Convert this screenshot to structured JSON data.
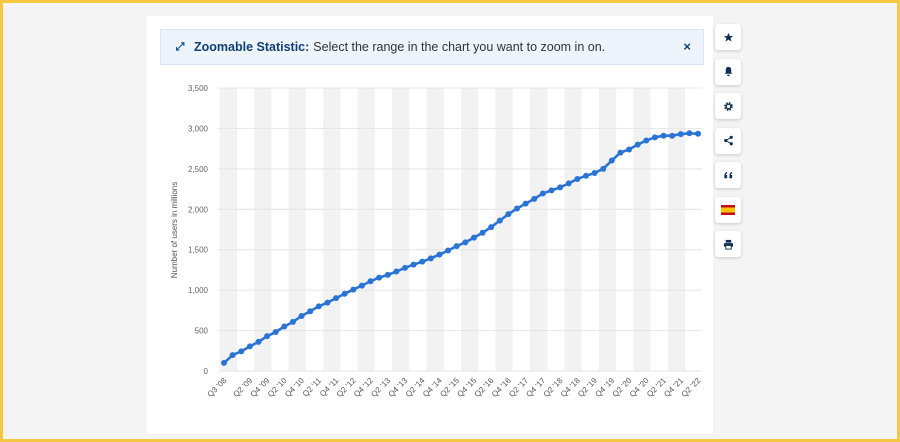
{
  "banner": {
    "label": "Zoomable Statistic:",
    "text": "Select the range in the chart you want to zoom in on.",
    "close": "×"
  },
  "toolbar": {
    "icons": [
      "star-icon",
      "bell-icon",
      "gear-icon",
      "share-icon",
      "quote-icon",
      "spain-flag-icon",
      "print-icon"
    ]
  },
  "colors": {
    "line": "#2a74d6",
    "band": "#f2f2f2",
    "grid": "#e4e4e4",
    "border": "#f5c743"
  },
  "chart_data": {
    "type": "line",
    "ylabel": "Number of users in millions",
    "ylim": [
      0,
      3500
    ],
    "yticks": [
      0,
      500,
      1000,
      1500,
      2000,
      2500,
      3000,
      3500
    ],
    "ytick_labels": [
      "0",
      "500",
      "1,000",
      "1,500",
      "2,000",
      "2,500",
      "3,000",
      "3,500"
    ],
    "grid": true,
    "x_tick_labels": [
      "Q3 '08",
      "Q2 '09",
      "Q4 '09",
      "Q2 '10",
      "Q4 '10",
      "Q2 '11",
      "Q4 '11",
      "Q2 '12",
      "Q4 '12",
      "Q2 '13",
      "Q4 '13",
      "Q2 '14",
      "Q4 '14",
      "Q2 '15",
      "Q4 '15",
      "Q2 '16",
      "Q4 '16",
      "Q2 '17",
      "Q4 '17",
      "Q2 '18",
      "Q4 '18",
      "Q2 '19",
      "Q4 '19",
      "Q2 '20",
      "Q4 '20",
      "Q2 '21",
      "Q4 '21",
      "Q2 '22"
    ],
    "x": [
      "Q3 '08",
      "Q4 '08",
      "Q1 '09",
      "Q2 '09",
      "Q3 '09",
      "Q4 '09",
      "Q1 '10",
      "Q2 '10",
      "Q3 '10",
      "Q4 '10",
      "Q1 '11",
      "Q2 '11",
      "Q3 '11",
      "Q4 '11",
      "Q1 '12",
      "Q2 '12",
      "Q3 '12",
      "Q4 '12",
      "Q1 '13",
      "Q2 '13",
      "Q3 '13",
      "Q4 '13",
      "Q1 '14",
      "Q2 '14",
      "Q3 '14",
      "Q4 '14",
      "Q1 '15",
      "Q2 '15",
      "Q3 '15",
      "Q4 '15",
      "Q1 '16",
      "Q2 '16",
      "Q3 '16",
      "Q4 '16",
      "Q1 '17",
      "Q2 '17",
      "Q3 '17",
      "Q4 '17",
      "Q1 '18",
      "Q2 '18",
      "Q3 '18",
      "Q4 '18",
      "Q1 '19",
      "Q2 '19",
      "Q3 '19",
      "Q4 '19",
      "Q1 '20",
      "Q2 '20",
      "Q3 '20",
      "Q4 '20",
      "Q1 '21",
      "Q2 '21",
      "Q3 '21",
      "Q4 '21",
      "Q1 '22",
      "Q2 '22"
    ],
    "series": [
      {
        "values": [
          100,
          197,
          242,
          305,
          360,
          431,
          482,
          550,
          608,
          680,
          739,
          800,
          845,
          901,
          955,
          1007,
          1056,
          1110,
          1155,
          1189,
          1230,
          1276,
          1316,
          1352,
          1393,
          1440,
          1490,
          1545,
          1590,
          1650,
          1710,
          1780,
          1860,
          1940,
          2010,
          2070,
          2129,
          2196,
          2234,
          2271,
          2320,
          2375,
          2414,
          2449,
          2500,
          2603,
          2701,
          2740,
          2800,
          2850,
          2890,
          2910,
          2910,
          2930,
          2940,
          2934
        ]
      }
    ]
  }
}
